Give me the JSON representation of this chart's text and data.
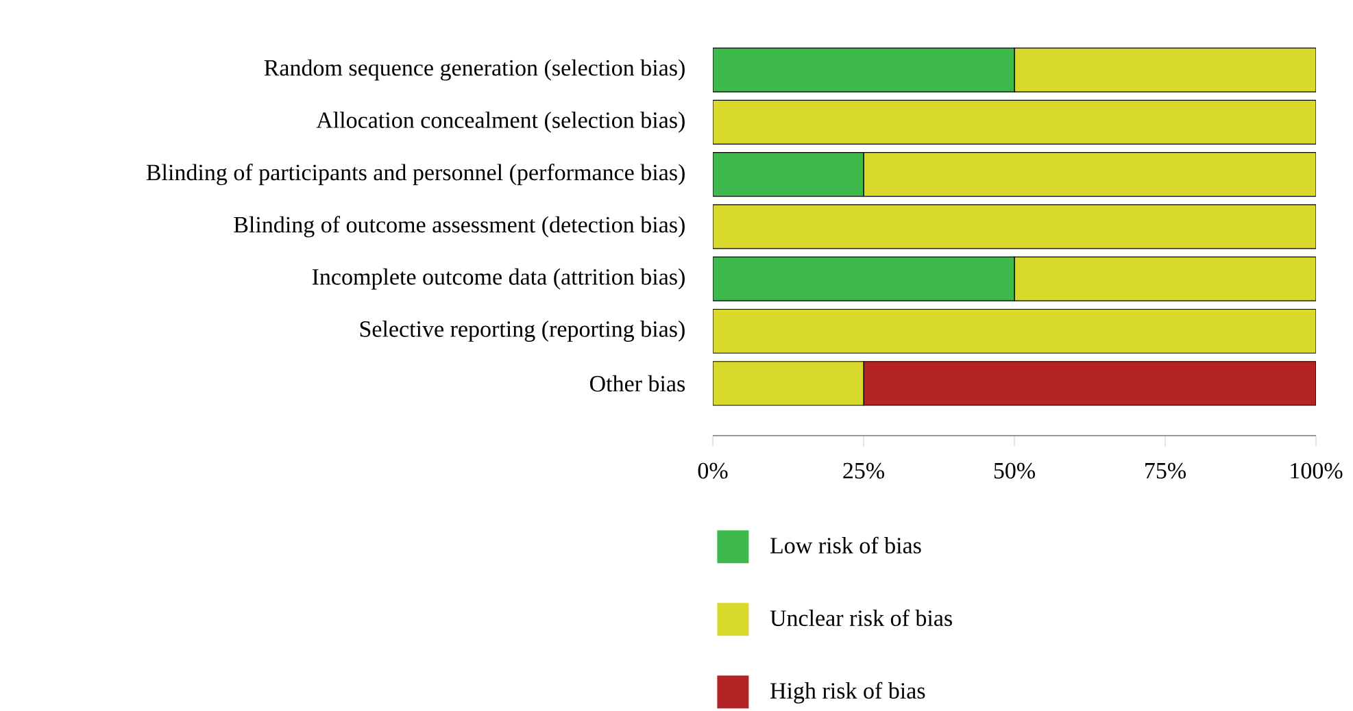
{
  "chart_data": {
    "type": "bar",
    "orientation": "horizontal",
    "stacked": true,
    "legend": "bottom",
    "categories": [
      "Random sequence generation (selection bias)",
      "Allocation concealment (selection bias)",
      "Blinding of participants and personnel (performance bias)",
      "Blinding of outcome assessment (detection bias)",
      "Incomplete outcome data (attrition bias)",
      "Selective reporting (reporting bias)",
      "Other bias"
    ],
    "series": [
      {
        "name": "Low risk of bias",
        "color": "#3db84a",
        "values": [
          50,
          0,
          25,
          0,
          50,
          0,
          0
        ]
      },
      {
        "name": "Unclear risk of bias",
        "color": "#d8d92b",
        "values": [
          50,
          100,
          75,
          100,
          50,
          100,
          25
        ]
      },
      {
        "name": "High risk of bias",
        "color": "#b52425",
        "values": [
          0,
          0,
          0,
          0,
          0,
          0,
          75
        ]
      }
    ],
    "xlim": [
      0,
      100
    ],
    "xticks": [
      {
        "value": 0,
        "label": "0%"
      },
      {
        "value": 25,
        "label": "25%"
      },
      {
        "value": 50,
        "label": "50%"
      },
      {
        "value": 75,
        "label": "75%"
      },
      {
        "value": 100,
        "label": "100%"
      }
    ]
  }
}
